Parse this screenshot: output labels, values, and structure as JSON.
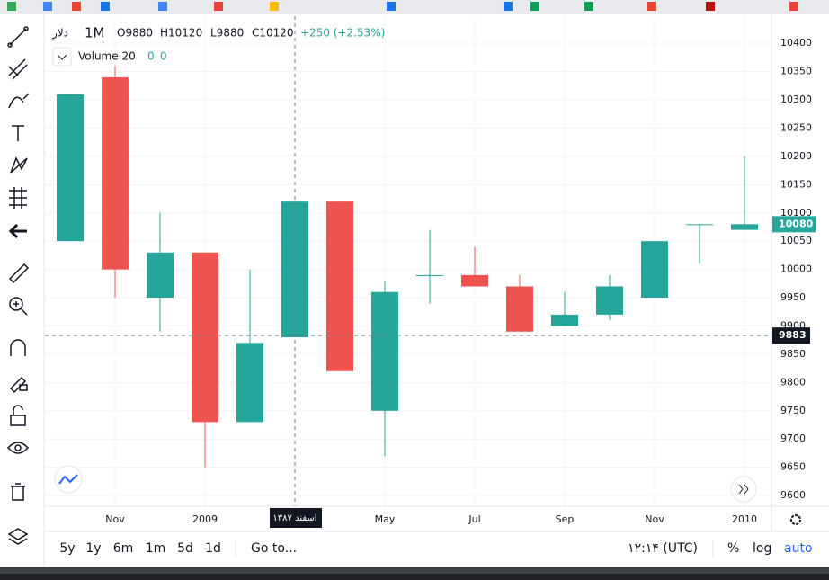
{
  "chart_data": {
    "type": "candlestick",
    "symbol": "دلار",
    "interval": "1M",
    "ohlc_legend": [
      "O9880",
      "H10120",
      "L9880",
      "C10120"
    ],
    "change": "+250 (+2.53%)",
    "volume_label": "Volume 20",
    "volume_values": [
      "0",
      "0"
    ],
    "categories": [
      null,
      "Nov",
      null,
      "2009",
      null,
      null,
      null,
      "May",
      null,
      "Jul",
      null,
      "Sep",
      null,
      "Nov",
      null,
      "2010"
    ],
    "open": [
      10050,
      10340,
      9950,
      10030,
      9730,
      9880,
      10120,
      9750,
      9990,
      9990,
      9970,
      9900,
      9920,
      9950,
      10080,
      10070
    ],
    "high": [
      10310,
      10360,
      10100,
      10030,
      10000,
      10120,
      10120,
      9980,
      10070,
      10040,
      9990,
      9960,
      9990,
      10050,
      10080,
      10200
    ],
    "low": [
      10050,
      9950,
      9890,
      9650,
      9730,
      9880,
      9820,
      9670,
      9940,
      9970,
      9890,
      9900,
      9910,
      9950,
      10010,
      10070
    ],
    "close": [
      10310,
      10000,
      10030,
      9730,
      9870,
      10120,
      9820,
      9960,
      9990,
      9970,
      9890,
      9920,
      9970,
      10050,
      10080,
      10080
    ],
    "up_color": "#26a69a",
    "down_color": "#ef5350",
    "ylim": [
      9581,
      10448
    ],
    "yticks": [
      9600,
      9650,
      9700,
      9750,
      9800,
      9850,
      9900,
      9950,
      10000,
      10050,
      10100,
      10150,
      10200,
      10250,
      10300,
      10350,
      10400
    ],
    "grid": true,
    "last_price": 10080,
    "crosshair": {
      "price": 9883,
      "time_label": "اسفند ۱۳۸۷"
    }
  },
  "bottom_bar": {
    "ranges": [
      "5y",
      "1y",
      "6m",
      "1m",
      "5d",
      "1d"
    ],
    "goto": "Go to...",
    "time": "۱۲:۱۴ (UTC)",
    "percent": "%",
    "log": "log",
    "auto": "auto"
  }
}
